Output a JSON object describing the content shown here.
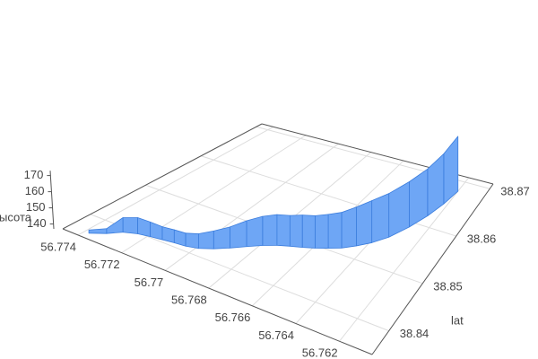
{
  "chart_data": {
    "type": "ribbon3d",
    "zlabel": "высота",
    "ylabel": "lat",
    "color": "#6ea6f5",
    "edge_color": "#3b7ddd",
    "grid": true,
    "xlim": [
      56.7747,
      56.7605
    ],
    "ylim": [
      38.835,
      38.871
    ],
    "zlim": [
      137,
      173
    ],
    "xticks": [
      56.774,
      56.772,
      56.77,
      56.768,
      56.766,
      56.764,
      56.762
    ],
    "yticks": [
      38.84,
      38.85,
      38.86,
      38.87
    ],
    "zticks": [
      140,
      150,
      160,
      170
    ],
    "x": [
      56.7738,
      56.7733,
      56.7729,
      56.7724,
      56.7719,
      56.7714,
      56.7709,
      56.7704,
      56.7699,
      56.7694,
      56.7689,
      56.7684,
      56.7679,
      56.7674,
      56.7669,
      56.7664,
      56.7659,
      56.7654,
      56.7649,
      56.7644,
      56.7639,
      56.7634,
      56.7629,
      56.7625,
      56.7622,
      56.762
    ],
    "y": [
      38.8362,
      38.8375,
      38.839,
      38.8398,
      38.8402,
      38.8405,
      38.8408,
      38.841,
      38.8415,
      38.8425,
      38.8438,
      38.8452,
      38.8465,
      38.8475,
      38.8482,
      38.8488,
      38.8495,
      38.8503,
      38.8512,
      38.8525,
      38.854,
      38.856,
      38.859,
      38.862,
      38.865,
      38.868
    ],
    "z": [
      139,
      140,
      146,
      147,
      146,
      145,
      145,
      145,
      146,
      148,
      150,
      153,
      155,
      156,
      156,
      157,
      157,
      158,
      159,
      161,
      163,
      164,
      165,
      166,
      168,
      171
    ]
  }
}
